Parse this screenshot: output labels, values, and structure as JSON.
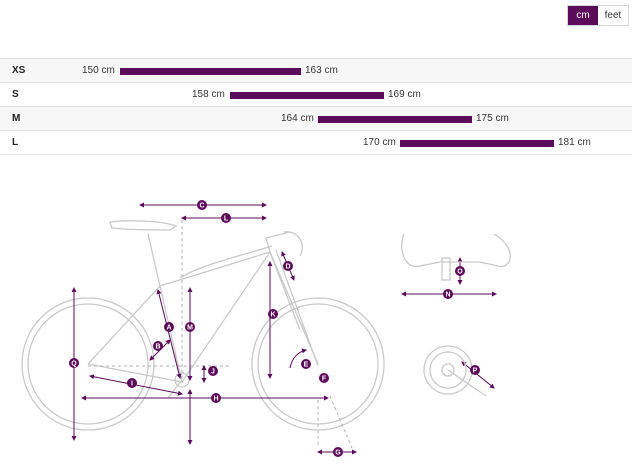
{
  "unit_toggle": {
    "options": [
      {
        "label": "cm",
        "active": true
      },
      {
        "label": "feet",
        "active": false
      }
    ],
    "active_color": "#5c0a5a"
  },
  "size_chart": {
    "bar_color": "#5c0a5a",
    "rows": [
      {
        "size": "XS",
        "min": "150 cm",
        "max": "163 cm"
      },
      {
        "size": "S",
        "min": "158 cm",
        "max": "169 cm"
      },
      {
        "size": "M",
        "min": "164 cm",
        "max": "175 cm"
      },
      {
        "size": "L",
        "min": "170 cm",
        "max": "181 cm"
      }
    ]
  },
  "geometry_diagram": {
    "marker_color": "#5c0a5a",
    "labels": {
      "A": "A",
      "B": "B",
      "C": "C",
      "D": "D",
      "E": "E",
      "F": "F",
      "G": "G",
      "H": "H",
      "I": "I",
      "J": "J",
      "K": "K",
      "L": "L",
      "M": "M",
      "N": "N",
      "O": "O",
      "P": "P",
      "Q": "Q"
    }
  }
}
